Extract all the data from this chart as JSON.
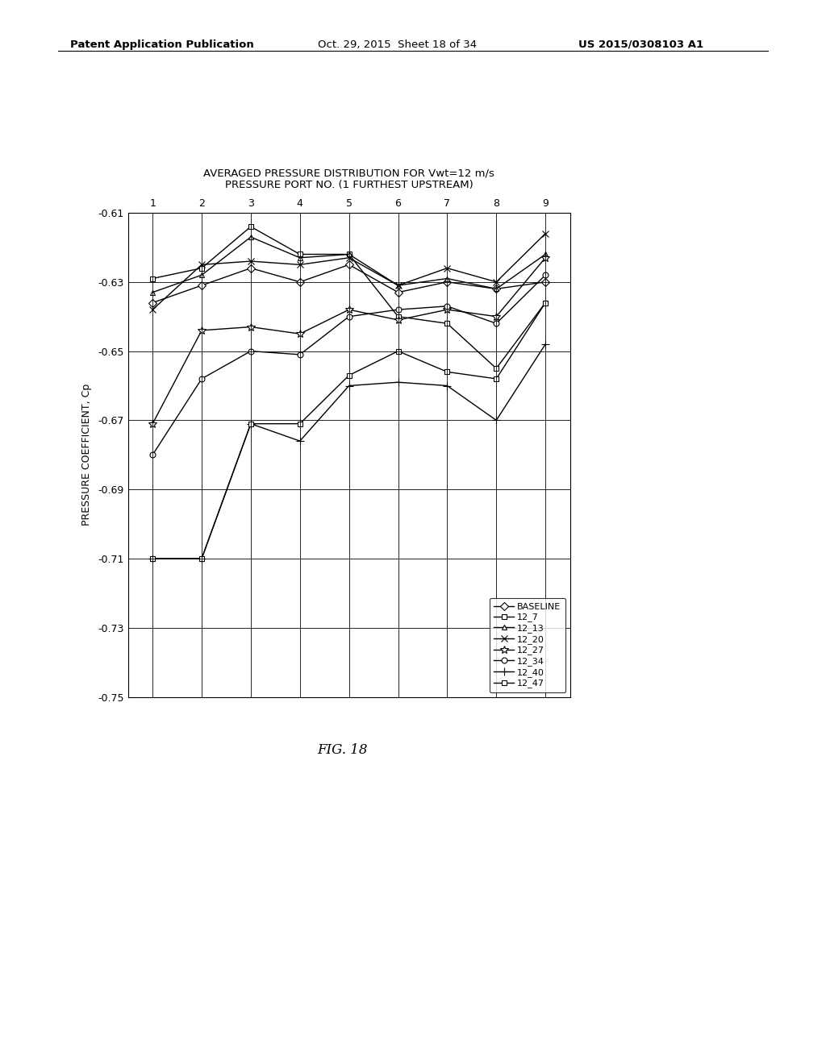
{
  "title_line1": "AVERAGED PRESSURE DISTRIBUTION FOR Vwt=12 m/s",
  "title_line2": "PRESSURE PORT NO. (1 FURTHEST UPSTREAM)",
  "ylabel": "PRESSURE COEFFICIENT, Cp",
  "x": [
    1,
    2,
    3,
    4,
    5,
    6,
    7,
    8,
    9
  ],
  "ylim": [
    -0.75,
    -0.61
  ],
  "yticks": [
    -0.75,
    -0.73,
    -0.71,
    -0.69,
    -0.67,
    -0.65,
    -0.63,
    -0.61
  ],
  "series": [
    {
      "name": "BASELINE",
      "marker": "D",
      "ms": 5,
      "values": [
        -0.636,
        -0.631,
        -0.626,
        -0.63,
        -0.625,
        -0.633,
        -0.63,
        -0.632,
        -0.63
      ]
    },
    {
      "name": "12_7",
      "marker": "s",
      "ms": 5,
      "values": [
        -0.629,
        -0.626,
        -0.614,
        -0.622,
        -0.622,
        -0.64,
        -0.642,
        -0.655,
        -0.636
      ]
    },
    {
      "name": "12_13",
      "marker": "^",
      "ms": 5,
      "values": [
        -0.633,
        -0.628,
        -0.617,
        -0.623,
        -0.622,
        -0.631,
        -0.629,
        -0.632,
        -0.622
      ]
    },
    {
      "name": "12_20",
      "marker": "x",
      "ms": 6,
      "values": [
        -0.638,
        -0.625,
        -0.624,
        -0.625,
        -0.623,
        -0.631,
        -0.626,
        -0.63,
        -0.616
      ]
    },
    {
      "name": "12_27",
      "marker": "*",
      "ms": 7,
      "values": [
        -0.671,
        -0.644,
        -0.643,
        -0.645,
        -0.638,
        -0.641,
        -0.638,
        -0.64,
        -0.623
      ]
    },
    {
      "name": "12_34",
      "marker": "o",
      "ms": 5,
      "values": [
        -0.68,
        -0.658,
        -0.65,
        -0.651,
        -0.64,
        -0.638,
        -0.637,
        -0.642,
        -0.628
      ]
    },
    {
      "name": "12_40",
      "marker": "+",
      "ms": 7,
      "values": [
        -0.71,
        -0.71,
        -0.671,
        -0.676,
        -0.66,
        -0.659,
        -0.66,
        -0.67,
        -0.648
      ]
    },
    {
      "name": "12_47",
      "marker": "s",
      "ms": 5,
      "values": [
        -0.71,
        -0.71,
        -0.671,
        -0.671,
        -0.657,
        -0.65,
        -0.656,
        -0.658,
        -0.636
      ]
    }
  ],
  "fig_label": "FIG. 18",
  "header_left": "Patent Application Publication",
  "header_center": "Oct. 29, 2015  Sheet 18 of 34",
  "header_right": "US 2015/0308103 A1",
  "background_color": "#ffffff"
}
